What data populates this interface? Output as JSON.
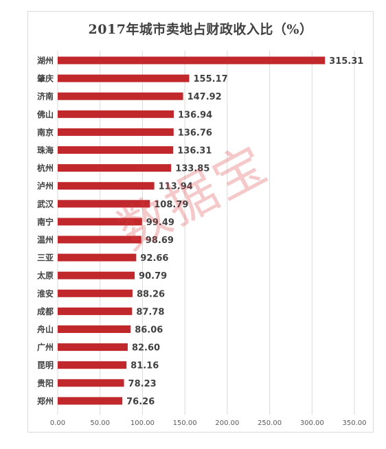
{
  "chart_data": {
    "type": "bar",
    "orientation": "horizontal",
    "title": "2017年城市卖地占财政收入比（%）",
    "categories": [
      "湖州",
      "肇庆",
      "济南",
      "佛山",
      "南京",
      "珠海",
      "杭州",
      "泸州",
      "武汉",
      "南宁",
      "温州",
      "三亚",
      "太原",
      "淮安",
      "成都",
      "舟山",
      "广州",
      "昆明",
      "贵阳",
      "郑州"
    ],
    "values": [
      315.31,
      155.17,
      147.92,
      136.94,
      136.76,
      136.31,
      133.85,
      113.94,
      108.79,
      99.49,
      98.69,
      92.66,
      90.79,
      88.26,
      87.78,
      86.06,
      82.6,
      81.16,
      78.23,
      76.26
    ],
    "value_labels": [
      "315.31",
      "155.17",
      "147.92",
      "136.94",
      "136.76",
      "136.31",
      "133.85",
      "113.94",
      "108.79",
      "99.49",
      "98.69",
      "92.66",
      "90.79",
      "88.26",
      "87.78",
      "86.06",
      "82.60",
      "81.16",
      "78.23",
      "76.26"
    ],
    "xlim": [
      0,
      350
    ],
    "xticks": [
      "0.00",
      "50.00",
      "100.00",
      "150.00",
      "200.00",
      "250.00",
      "300.00",
      "350.00"
    ],
    "grid": "vertical",
    "legend": "none",
    "bar_color": "#c0282b"
  },
  "watermark": "数据宝"
}
